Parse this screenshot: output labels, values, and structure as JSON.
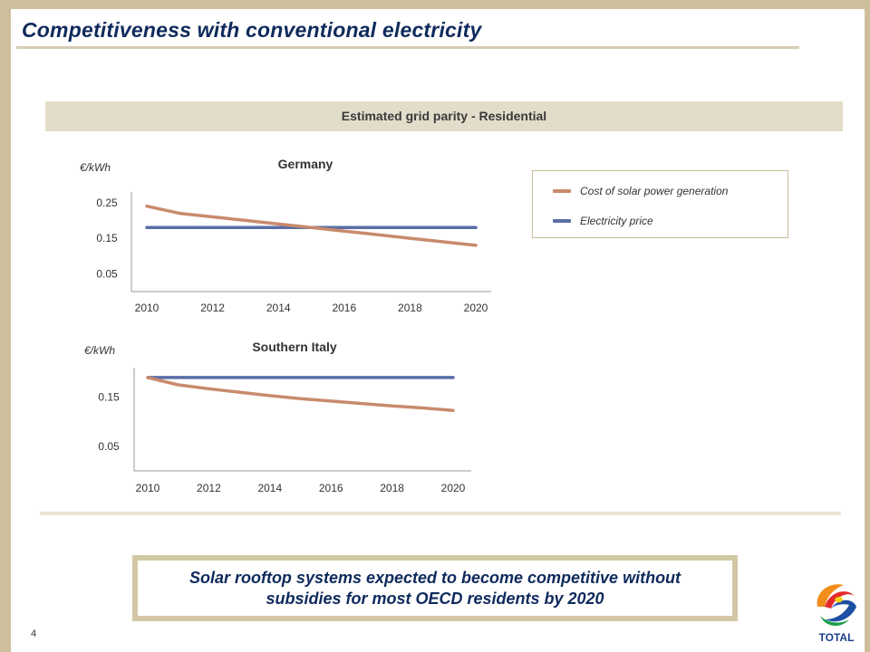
{
  "slide": {
    "title": "Competitiveness with conventional electricity",
    "section_header": "Estimated grid parity - Residential",
    "callout": "Solar rooftop systems expected to become competitive without subsidies for most OECD residents by 2020",
    "page_number": "4",
    "logo_text": "TOTAL",
    "colors": {
      "title": "#0f2a5c",
      "frame": "#cdbf9c",
      "band": "#e2dccb",
      "callout_border": "#d3c8a6"
    }
  },
  "legend": {
    "items": [
      {
        "label": "Cost of solar power generation",
        "color": "#c98a6d"
      },
      {
        "label": "Electricity price",
        "color": "#5a6ea6"
      }
    ],
    "placement": "right"
  },
  "chart_data": [
    {
      "type": "line",
      "title": "Germany",
      "ylabel": "€/kWh",
      "xlabel": "",
      "x": [
        2010,
        2011,
        2012,
        2013,
        2014,
        2015,
        2016,
        2017,
        2018,
        2019,
        2020
      ],
      "x_ticks": [
        "2010",
        "2012",
        "2014",
        "2016",
        "2018",
        "2020"
      ],
      "y_ticks": [
        "0.25",
        "0.15",
        "0.05"
      ],
      "y_tick_values": [
        0.25,
        0.15,
        0.05
      ],
      "ylim": [
        0.0,
        0.28
      ],
      "grid": false,
      "series": [
        {
          "name": "Cost of solar power generation",
          "color": "#c98a6d",
          "values": [
            0.24,
            0.22,
            0.21,
            0.2,
            0.19,
            0.18,
            0.17,
            0.16,
            0.15,
            0.14,
            0.13
          ]
        },
        {
          "name": "Electricity price",
          "color": "#5a6ea6",
          "values": [
            0.18,
            0.18,
            0.18,
            0.18,
            0.18,
            0.18,
            0.18,
            0.18,
            0.18,
            0.18,
            0.18
          ]
        }
      ]
    },
    {
      "type": "line",
      "title": "Southern Italy",
      "ylabel": "€/kWh",
      "xlabel": "",
      "x": [
        2010,
        2011,
        2012,
        2013,
        2014,
        2015,
        2016,
        2017,
        2018,
        2019,
        2020
      ],
      "x_ticks": [
        "2010",
        "2012",
        "2014",
        "2016",
        "2018",
        "2020"
      ],
      "y_ticks": [
        "0.15",
        "0.05"
      ],
      "y_tick_values": [
        0.15,
        0.05
      ],
      "ylim": [
        0.0,
        0.21
      ],
      "grid": false,
      "series": [
        {
          "name": "Cost of solar power generation",
          "color": "#c98a6d",
          "values": [
            0.19,
            0.175,
            0.167,
            0.16,
            0.153,
            0.147,
            0.142,
            0.137,
            0.132,
            0.128,
            0.123
          ]
        },
        {
          "name": "Electricity price",
          "color": "#5a6ea6",
          "values": [
            0.19,
            0.19,
            0.19,
            0.19,
            0.19,
            0.19,
            0.19,
            0.19,
            0.19,
            0.19,
            0.19
          ]
        }
      ]
    }
  ]
}
